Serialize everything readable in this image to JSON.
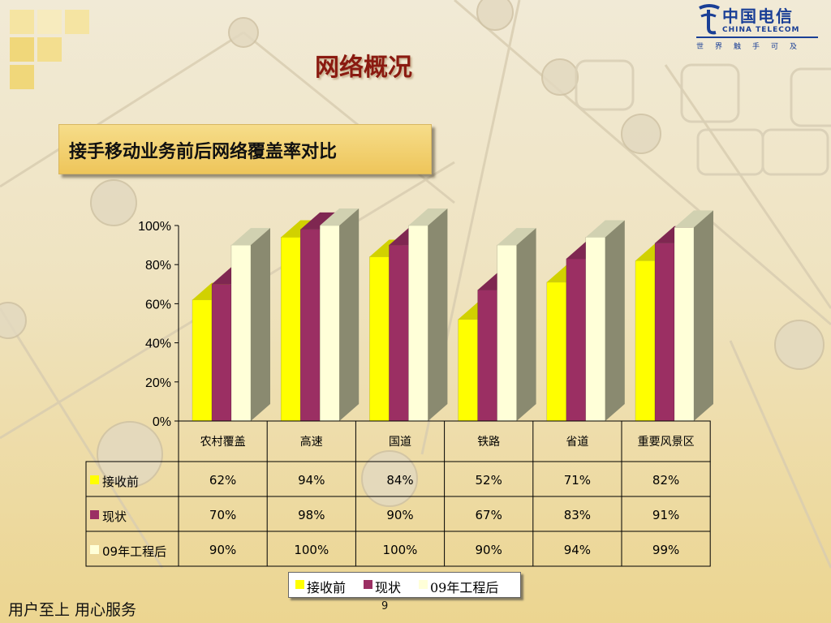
{
  "header": {
    "title": "网络概况",
    "subtitle": "接手移动业务前后网络覆盖率对比"
  },
  "logo": {
    "name": "中国电信",
    "english": "CHINA TELECOM",
    "slogan": "世界触手可及"
  },
  "colors": {
    "series1": "#ffff00",
    "series2": "#9b2f63",
    "series3": "#ffffd8",
    "title": "#8a1a10",
    "logo": "#1a3f96"
  },
  "chart_data": {
    "type": "bar",
    "categories": [
      "农村覆盖",
      "高速",
      "国道",
      "铁路",
      "省道",
      "重要风景区"
    ],
    "series": [
      {
        "name": "接收前",
        "values": [
          62,
          94,
          84,
          52,
          71,
          82
        ],
        "labels": [
          "62%",
          "94%",
          "84%",
          "52%",
          "71%",
          "82%"
        ]
      },
      {
        "name": "现状",
        "values": [
          70,
          98,
          90,
          67,
          83,
          91
        ],
        "labels": [
          "70%",
          "98%",
          "90%",
          "67%",
          "83%",
          "91%"
        ]
      },
      {
        "name": "09年工程后",
        "values": [
          90,
          100,
          100,
          90,
          94,
          99
        ],
        "labels": [
          "90%",
          "100%",
          "100%",
          "90%",
          "94%",
          "99%"
        ]
      }
    ],
    "yticks": [
      "0%",
      "20%",
      "40%",
      "60%",
      "80%",
      "100%"
    ],
    "ylim": [
      0,
      100
    ],
    "legend_position": "bottom",
    "data_table": true
  },
  "footer": {
    "slogan": "用户至上  用心服务",
    "page_number": "9"
  }
}
